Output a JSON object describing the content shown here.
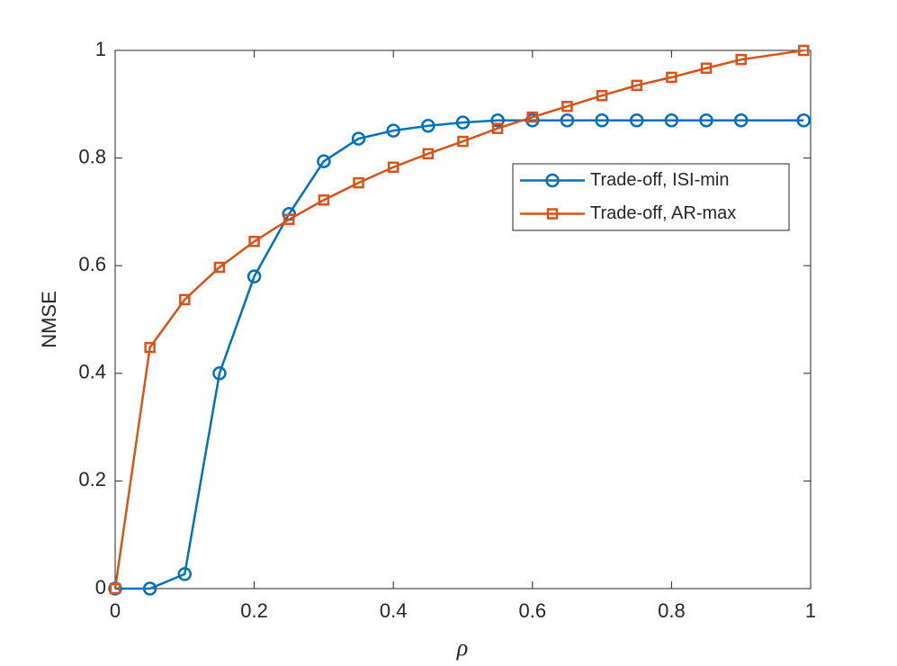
{
  "chart_data": {
    "type": "line",
    "xlabel": "ρ",
    "ylabel": "NMSE",
    "x": [
      0,
      0.05,
      0.1,
      0.15,
      0.2,
      0.25,
      0.3,
      0.35,
      0.4,
      0.45,
      0.5,
      0.55,
      0.6,
      0.65,
      0.7,
      0.75,
      0.8,
      0.85,
      0.9,
      0.99
    ],
    "series": [
      {
        "name": "Trade-off, ISI-min",
        "color": "#0072bd",
        "marker": "circle",
        "values": [
          0,
          0,
          0.027,
          0.4,
          0.58,
          0.696,
          0.794,
          0.836,
          0.851,
          0.86,
          0.866,
          0.87,
          0.87,
          0.87,
          0.87,
          0.87,
          0.87,
          0.87,
          0.87,
          0.87
        ]
      },
      {
        "name": "Trade-off, AR-max",
        "color": "#d95319",
        "marker": "square",
        "values": [
          0,
          0.448,
          0.537,
          0.597,
          0.645,
          0.686,
          0.722,
          0.754,
          0.783,
          0.808,
          0.831,
          0.855,
          0.876,
          0.896,
          0.916,
          0.935,
          0.95,
          0.967,
          0.983,
          1.0
        ]
      }
    ],
    "xlim": [
      0,
      1
    ],
    "xticks": [
      0,
      0.2,
      0.4,
      0.6,
      0.8,
      1
    ],
    "ylim": [
      0,
      1
    ],
    "yticks": [
      0,
      0.2,
      0.4,
      0.6,
      0.8,
      1
    ],
    "grid": false,
    "legend_loc": "right"
  }
}
